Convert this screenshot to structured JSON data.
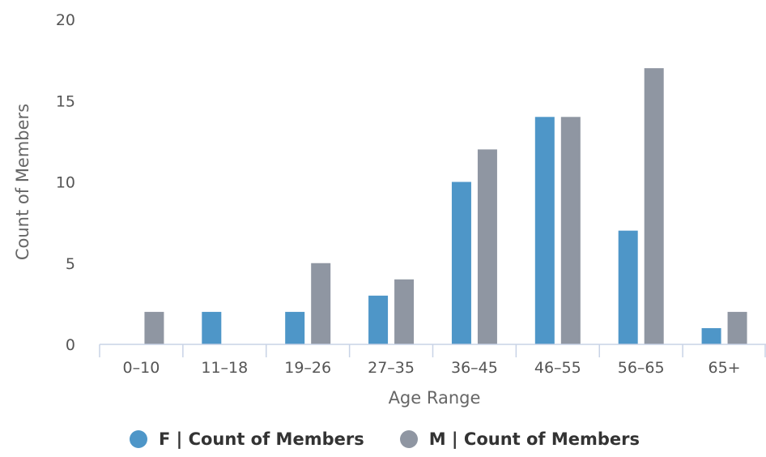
{
  "chart_data": {
    "type": "bar",
    "xlabel": "Age Range",
    "ylabel": "Count of Members",
    "ylim": [
      0,
      20
    ],
    "yticks": [
      0,
      5,
      10,
      15,
      20
    ],
    "categories": [
      "0-10",
      "11-18",
      "19-26",
      "27-35",
      "36-45",
      "46-55",
      "56-65",
      "65+"
    ],
    "series": [
      {
        "name": "F | Count of Members",
        "color": "#4e96c8",
        "values": [
          0,
          2,
          2,
          3,
          10,
          14,
          7,
          1
        ]
      },
      {
        "name": "M | Count of Members",
        "color": "#8f96a2",
        "values": [
          2,
          0,
          5,
          4,
          12,
          14,
          17,
          2
        ]
      }
    ],
    "grid": false,
    "legend_position": "bottom-center"
  },
  "legend": {
    "items": [
      {
        "label": "F | Count of Members",
        "color": "#4e96c8"
      },
      {
        "label": "M | Count of Members",
        "color": "#8f96a2"
      }
    ]
  },
  "colors": {
    "axis_line": "#c8d3e6",
    "tick_text": "#555555",
    "title_text": "#666666"
  }
}
